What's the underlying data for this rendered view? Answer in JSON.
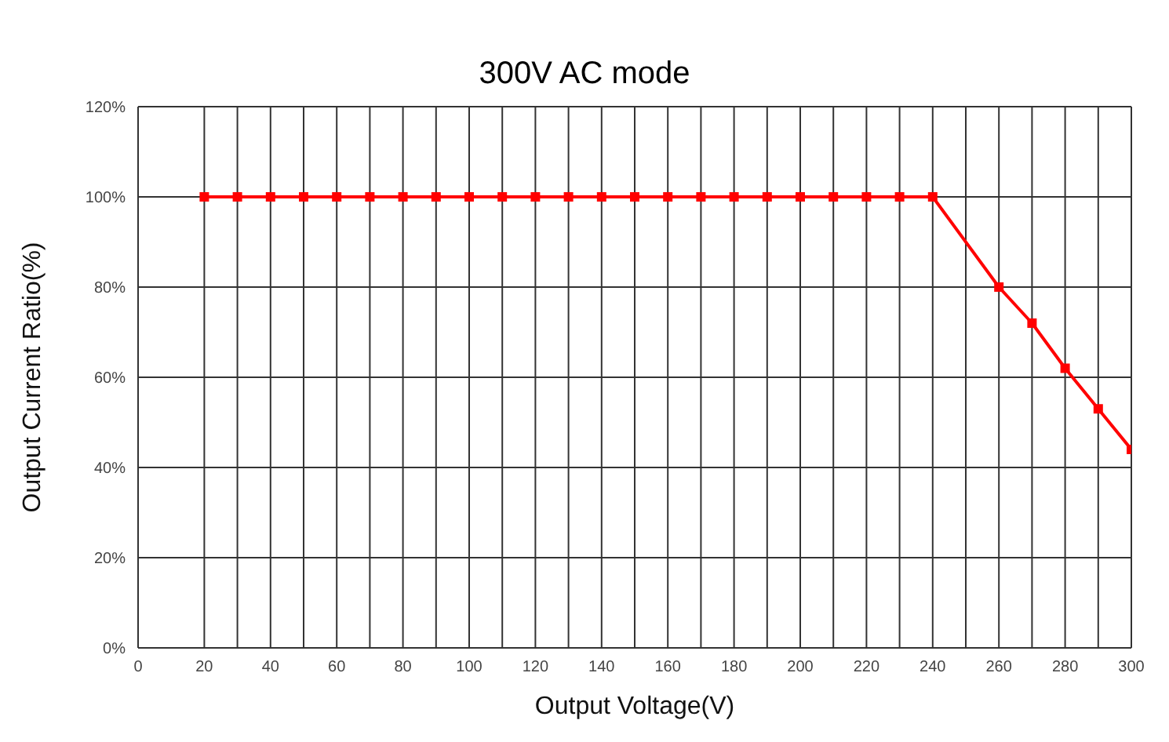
{
  "chart_data": {
    "type": "line",
    "title": "300V AC mode",
    "xlabel": "Output Voltage(V)",
    "ylabel": "Output Current Ratio(%)",
    "x": [
      20,
      30,
      40,
      50,
      60,
      70,
      80,
      90,
      100,
      110,
      120,
      130,
      140,
      150,
      160,
      170,
      180,
      190,
      200,
      210,
      220,
      230,
      240,
      260,
      270,
      280,
      290,
      300
    ],
    "series": [
      {
        "color": "#ff0000",
        "values": [
          100,
          100,
          100,
          100,
          100,
          100,
          100,
          100,
          100,
          100,
          100,
          100,
          100,
          100,
          100,
          100,
          100,
          100,
          100,
          100,
          100,
          100,
          100,
          80,
          72,
          62,
          53,
          44
        ]
      }
    ],
    "xlim": [
      0,
      300
    ],
    "xticks": [
      0,
      20,
      {
        "value": 30,
        "label": null
      },
      40,
      {
        "value": 50,
        "label": null
      },
      60,
      {
        "value": 70,
        "label": null
      },
      80,
      {
        "value": 90,
        "label": null
      },
      100,
      {
        "value": 110,
        "label": null
      },
      120,
      {
        "value": 130,
        "label": null
      },
      140,
      {
        "value": 150,
        "label": null
      },
      160,
      {
        "value": 170,
        "label": null
      },
      180,
      {
        "value": 190,
        "label": null
      },
      200,
      {
        "value": 210,
        "label": null
      },
      220,
      {
        "value": 230,
        "label": null
      },
      240,
      {
        "value": 250,
        "label": null
      },
      260,
      {
        "value": 270,
        "label": null
      },
      280,
      {
        "value": 290,
        "label": null
      },
      300
    ],
    "ylim": [
      0,
      120
    ],
    "yticks": [
      {
        "value": 0,
        "label": "0%"
      },
      {
        "value": 20,
        "label": "20%"
      },
      {
        "value": 40,
        "label": "40%"
      },
      {
        "value": 60,
        "label": "60%"
      },
      {
        "value": 80,
        "label": "80%"
      },
      {
        "value": 100,
        "label": "100%"
      },
      {
        "value": 120,
        "label": "120%"
      }
    ],
    "grid": true,
    "marker": "square",
    "line_style": "solid",
    "legend": false
  }
}
